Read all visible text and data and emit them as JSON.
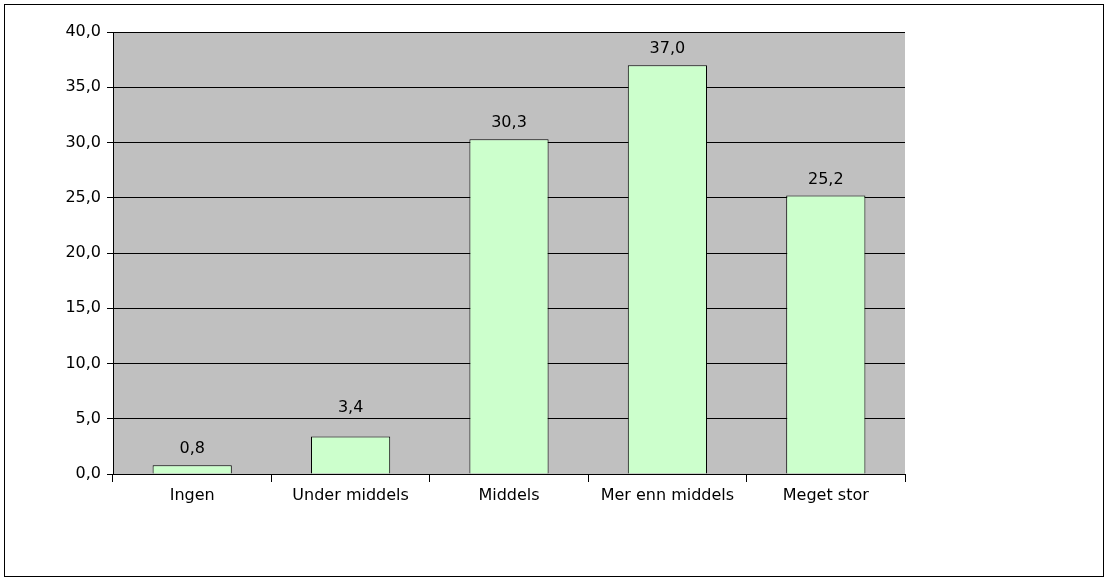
{
  "chart_data": {
    "type": "bar",
    "categories": [
      "Ingen",
      "Under middels",
      "Middels",
      "Mer enn middels",
      "Meget stor"
    ],
    "values": [
      0.8,
      3.4,
      30.3,
      37.0,
      25.2
    ],
    "value_labels": [
      "0,8",
      "3,4",
      "30,3",
      "37,0",
      "25,2"
    ],
    "color": "#ccffcc",
    "ylim": [
      0,
      40
    ],
    "yticks": [
      {
        "value": 0,
        "label": "0,0"
      },
      {
        "value": 5,
        "label": "5,0"
      },
      {
        "value": 10,
        "label": "10,0"
      },
      {
        "value": 15,
        "label": "15,0"
      },
      {
        "value": 20,
        "label": "20,0"
      },
      {
        "value": 25,
        "label": "25,0"
      },
      {
        "value": 30,
        "label": "30,0"
      },
      {
        "value": 35,
        "label": "35,0"
      },
      {
        "value": 40,
        "label": "40,0"
      }
    ],
    "grid": "y",
    "legend": false
  }
}
